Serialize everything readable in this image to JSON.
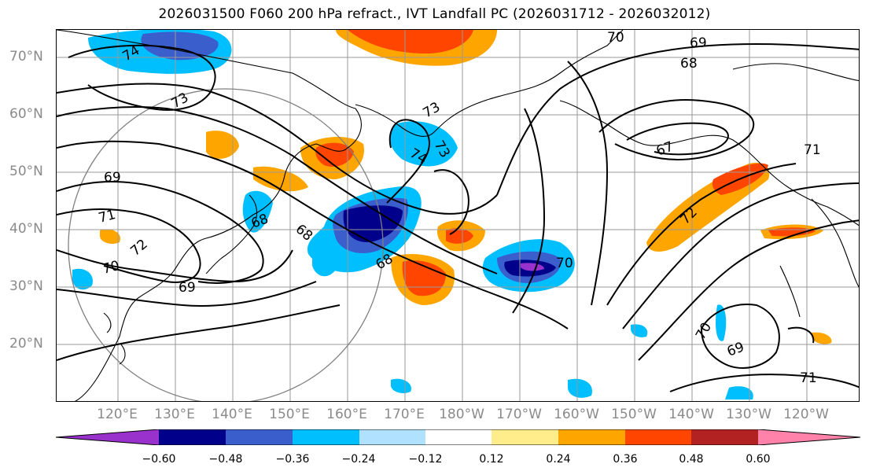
{
  "title": "2026031500 F060 200 hPa refract., IVT Landfall PC (2026031712 - 2026032012)",
  "lat_labels": [
    "70°N",
    "60°N",
    "50°N",
    "40°N",
    "30°N",
    "20°N"
  ],
  "lon_labels": [
    "120°E",
    "130°E",
    "140°E",
    "150°E",
    "160°E",
    "170°E",
    "180°W",
    "170°W",
    "160°W",
    "150°W",
    "140°W",
    "130°W",
    "120°W"
  ],
  "contour_labels": [
    "74",
    "73",
    "70",
    "69",
    "68",
    "69",
    "71",
    "72",
    "73",
    "74",
    "73",
    "68",
    "68",
    "68",
    "70",
    "69",
    "67",
    "72",
    "71",
    "70",
    "70",
    "69",
    "71"
  ],
  "colorbar": {
    "colors": [
      "#9932cc",
      "#00008b",
      "#3a5fcd",
      "#00bfff",
      "#b0e2ff",
      "#ffffff",
      "#ffec8b",
      "#ffa500",
      "#ff4500",
      "#b22222",
      "#ff82ab"
    ],
    "tick_labels": [
      "−0.60",
      "−0.48",
      "−0.36",
      "−0.24",
      "−0.12",
      "0.12",
      "0.24",
      "0.36",
      "0.48",
      "0.60"
    ]
  }
}
